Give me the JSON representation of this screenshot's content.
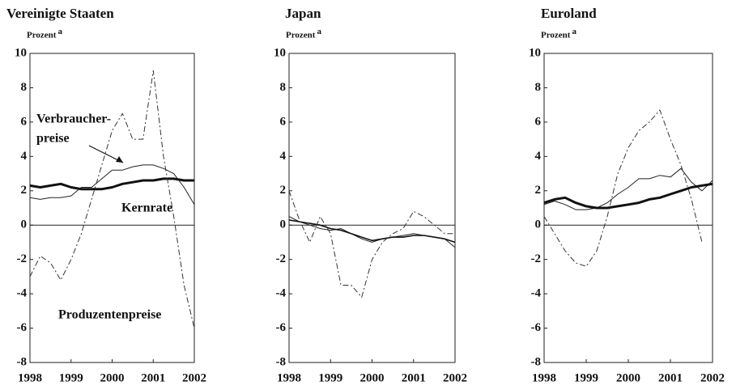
{
  "chart_data": [
    {
      "type": "line",
      "title": "Vereinigte Staaten",
      "ylabel": "Prozent",
      "ylabel_footnote": "a",
      "x": [
        1998,
        1998.25,
        1998.5,
        1998.75,
        1999,
        1999.25,
        1999.5,
        1999.75,
        2000,
        2000.25,
        2000.5,
        2000.75,
        2001,
        2001.25,
        2001.5,
        2001.75,
        2002
      ],
      "xlim": [
        1998,
        2002
      ],
      "xticks": [
        1998,
        1999,
        2000,
        2001,
        2002
      ],
      "ylim": [
        -8,
        10
      ],
      "yticks": [
        -8,
        -6,
        -4,
        -2,
        0,
        2,
        4,
        6,
        8,
        10
      ],
      "series": [
        {
          "name": [
            "Verbraucher-",
            "preise"
          ],
          "color": "#222",
          "style": "solid",
          "width": 1,
          "values": [
            1.6,
            1.5,
            1.6,
            1.6,
            1.7,
            2.2,
            2.2,
            2.7,
            3.2,
            3.2,
            3.4,
            3.5,
            3.5,
            3.3,
            3.0,
            2.2,
            1.2
          ]
        },
        {
          "name": "Kernrate",
          "color": "#111",
          "style": "solid",
          "width": 3,
          "values": [
            2.3,
            2.2,
            2.3,
            2.4,
            2.2,
            2.1,
            2.1,
            2.1,
            2.2,
            2.4,
            2.5,
            2.6,
            2.6,
            2.7,
            2.7,
            2.6,
            2.6
          ]
        },
        {
          "name": "Produzentenpreise",
          "color": "#333",
          "style": "dashed",
          "width": 1,
          "values": [
            -3.0,
            -1.8,
            -2.2,
            -3.2,
            -2.0,
            -0.5,
            1.5,
            3.5,
            5.5,
            6.5,
            5.0,
            5.0,
            9.0,
            4.0,
            0.5,
            -3.5,
            -6.0
          ]
        }
      ]
    },
    {
      "type": "line",
      "title": "Japan",
      "ylabel": "Prozent",
      "ylabel_footnote": "a",
      "x": [
        1998,
        1998.25,
        1998.5,
        1998.75,
        1999,
        1999.25,
        1999.5,
        1999.75,
        2000,
        2000.25,
        2000.5,
        2000.75,
        2001,
        2001.25,
        2001.5,
        2001.75,
        2002
      ],
      "xlim": [
        1998,
        2002
      ],
      "xticks": [
        1998,
        1999,
        2000,
        2001,
        2002
      ],
      "ylim": [
        -8,
        10
      ],
      "yticks": [
        -8,
        -6,
        -4,
        -2,
        0,
        2,
        4,
        6,
        8,
        10
      ],
      "series": [
        {
          "color": "#222",
          "style": "solid",
          "width": 1,
          "values": [
            0.5,
            0.2,
            0,
            -0.2,
            -0.3,
            -0.2,
            -0.5,
            -0.8,
            -1.0,
            -0.8,
            -0.7,
            -0.6,
            -0.5,
            -0.6,
            -0.7,
            -0.8,
            -1.3
          ]
        },
        {
          "color": "#111",
          "style": "solid",
          "width": 1.6,
          "values": [
            0.3,
            0.2,
            0.1,
            0,
            -0.2,
            -0.3,
            -0.5,
            -0.7,
            -0.9,
            -0.8,
            -0.7,
            -0.7,
            -0.6,
            -0.6,
            -0.7,
            -0.8,
            -1.0
          ]
        },
        {
          "color": "#333",
          "style": "dashed",
          "width": 1,
          "values": [
            2.0,
            0.3,
            -1.0,
            0.5,
            -0.5,
            -3.5,
            -3.5,
            -4.2,
            -2.0,
            -1.0,
            -0.5,
            -0.2,
            0.8,
            0.5,
            0,
            -0.5,
            -0.5
          ]
        }
      ]
    },
    {
      "type": "line",
      "title": "Euroland",
      "ylabel": "Prozent",
      "ylabel_footnote": "a",
      "x": [
        1998,
        1998.25,
        1998.5,
        1998.75,
        1999,
        1999.25,
        1999.5,
        1999.75,
        2000,
        2000.25,
        2000.5,
        2000.75,
        2001,
        2001.25,
        2001.5,
        2001.75,
        2002
      ],
      "xlim": [
        1998,
        2002
      ],
      "xticks": [
        1998,
        1999,
        2000,
        2001,
        2002
      ],
      "ylim": [
        -8,
        10
      ],
      "yticks": [
        -8,
        -6,
        -4,
        -2,
        0,
        2,
        4,
        6,
        8,
        10
      ],
      "series": [
        {
          "color": "#222",
          "style": "solid",
          "width": 1,
          "values": [
            1.2,
            1.4,
            1.2,
            0.9,
            0.9,
            1.0,
            1.3,
            1.8,
            2.2,
            2.7,
            2.7,
            2.9,
            2.8,
            3.3,
            2.5,
            2.0,
            2.6
          ]
        },
        {
          "color": "#111",
          "style": "solid",
          "width": 3,
          "values": [
            1.3,
            1.5,
            1.6,
            1.3,
            1.1,
            1.0,
            1.0,
            1.1,
            1.2,
            1.3,
            1.5,
            1.6,
            1.8,
            2.0,
            2.2,
            2.3,
            2.4
          ]
        },
        {
          "color": "#333",
          "style": "dashed",
          "width": 1,
          "values": [
            0.5,
            -0.5,
            -1.5,
            -2.2,
            -2.4,
            -1.5,
            0.5,
            3.0,
            4.5,
            5.5,
            6.0,
            6.7,
            5.0,
            3.5,
            1.5,
            -1.0,
            null
          ]
        }
      ]
    }
  ]
}
